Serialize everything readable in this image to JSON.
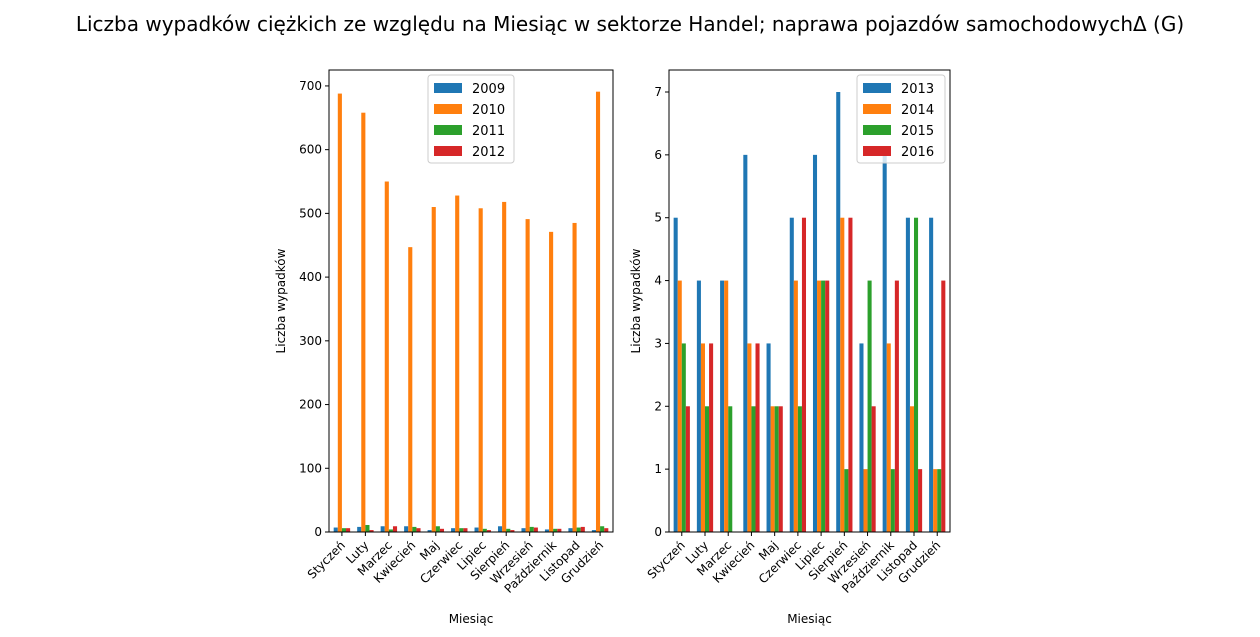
{
  "title": "Liczba wypadków ciężkich ze względu na Miesiąc w sektorze Handel; naprawa pojazdów samochodowychΔ  (G)",
  "chart_data": [
    {
      "type": "bar",
      "xlabel": "Miesiąc",
      "ylabel": "Liczba wypadków",
      "categories": [
        "Styczeń",
        "Luty",
        "Marzec",
        "Kwiecień",
        "Maj",
        "Czerwiec",
        "Lipiec",
        "Sierpień",
        "Wrzesień",
        "Październik",
        "Listopad",
        "Grudzień"
      ],
      "ylim": [
        0,
        725
      ],
      "yticks": [
        0,
        100,
        200,
        300,
        400,
        500,
        600,
        700
      ],
      "legend_position": "top-center",
      "series": [
        {
          "name": "2009",
          "color": "#1f77b4",
          "values": [
            7,
            8,
            9,
            9,
            3,
            6,
            7,
            9,
            6,
            4,
            6,
            3
          ]
        },
        {
          "name": "2010",
          "color": "#ff7f0e",
          "values": [
            688,
            658,
            550,
            447,
            510,
            528,
            508,
            518,
            491,
            471,
            485,
            691
          ]
        },
        {
          "name": "2011",
          "color": "#2ca02c",
          "values": [
            6,
            11,
            4,
            8,
            9,
            6,
            5,
            5,
            8,
            5,
            7,
            9
          ]
        },
        {
          "name": "2012",
          "color": "#d62728",
          "values": [
            6,
            3,
            9,
            6,
            5,
            6,
            3,
            3,
            7,
            5,
            8,
            6
          ]
        }
      ]
    },
    {
      "type": "bar",
      "xlabel": "Miesiąc",
      "ylabel": "Liczba wypadków",
      "categories": [
        "Styczeń",
        "Luty",
        "Marzec",
        "Kwiecień",
        "Maj",
        "Czerwiec",
        "Lipiec",
        "Sierpień",
        "Wrzesień",
        "Październik",
        "Listopad",
        "Grudzień"
      ],
      "ylim": [
        0,
        7.35
      ],
      "yticks": [
        0,
        1,
        2,
        3,
        4,
        5,
        6,
        7
      ],
      "legend_position": "top-right",
      "series": [
        {
          "name": "2013",
          "color": "#1f77b4",
          "values": [
            5,
            4,
            4,
            6,
            3,
            5,
            6,
            7,
            3,
            6,
            5,
            5
          ]
        },
        {
          "name": "2014",
          "color": "#ff7f0e",
          "values": [
            4,
            3,
            4,
            3,
            2,
            4,
            4,
            5,
            1,
            3,
            2,
            1
          ]
        },
        {
          "name": "2015",
          "color": "#2ca02c",
          "values": [
            3,
            2,
            2,
            2,
            2,
            2,
            4,
            1,
            4,
            1,
            5,
            1
          ]
        },
        {
          "name": "2016",
          "color": "#d62728",
          "values": [
            2,
            3,
            0,
            3,
            2,
            5,
            4,
            5,
            2,
            4,
            1,
            4
          ]
        }
      ]
    }
  ]
}
